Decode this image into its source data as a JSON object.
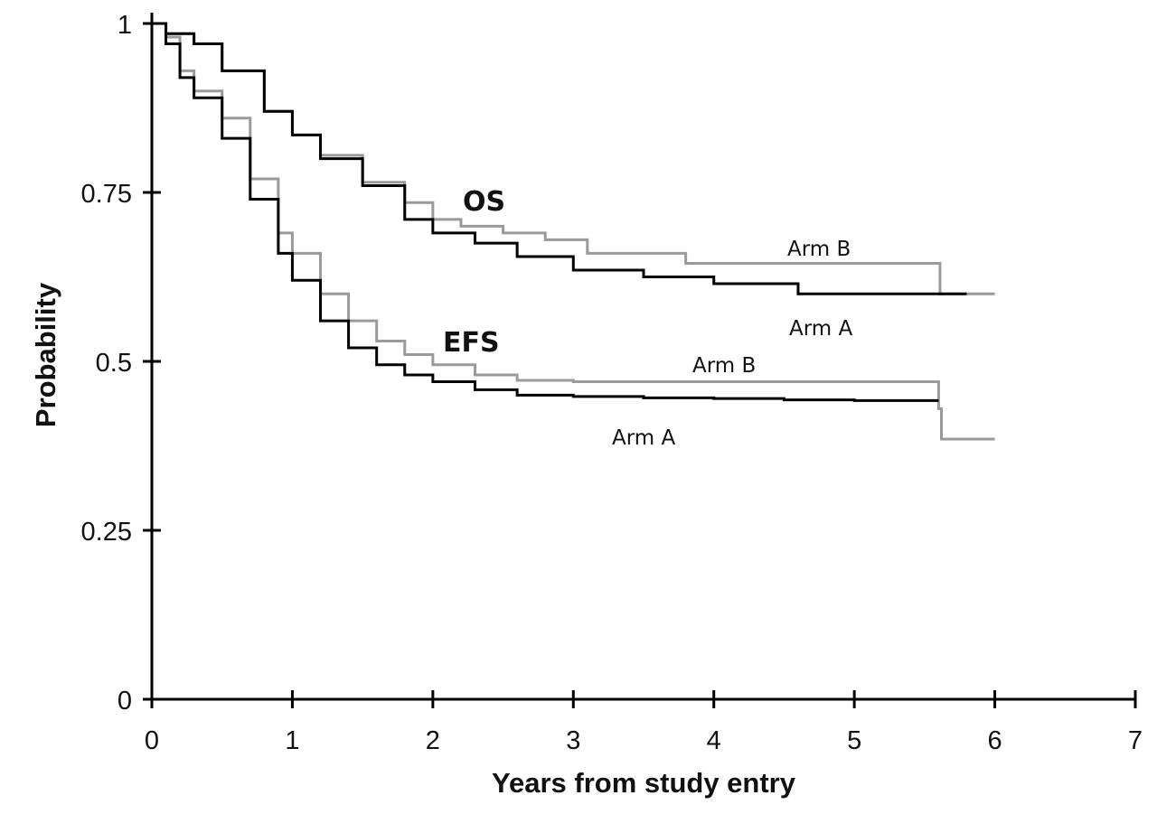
{
  "chart_data": {
    "type": "line",
    "xlabel": "Years from study entry",
    "ylabel": "Probability",
    "xlim": [
      0,
      7
    ],
    "ylim": [
      0,
      1
    ],
    "x_ticks": [
      "0",
      "1",
      "2",
      "3",
      "4",
      "5",
      "6",
      "7"
    ],
    "y_ticks": [
      "0",
      "0.25",
      "0.5",
      "0.75",
      "1"
    ],
    "grid": false,
    "legend": "none",
    "colors": {
      "arm_a": "#000000",
      "arm_b": "#9a9a9a",
      "axis": "#000000"
    },
    "annotations": {
      "os": "OS",
      "efs": "EFS",
      "os_arm_b": "Arm B",
      "os_arm_a": "Arm A",
      "efs_arm_b": "Arm B",
      "efs_arm_a": "Arm A"
    },
    "series": [
      {
        "endpoint": "OS",
        "arm": "Arm A",
        "color": "#000000",
        "x": [
          0,
          0.1,
          0.3,
          0.5,
          0.8,
          1.0,
          1.2,
          1.5,
          1.8,
          2.0,
          2.3,
          2.6,
          3.0,
          3.5,
          4.0,
          4.6,
          5.0,
          5.5,
          5.8
        ],
        "y": [
          1.0,
          0.985,
          0.97,
          0.93,
          0.87,
          0.835,
          0.8,
          0.76,
          0.71,
          0.69,
          0.675,
          0.655,
          0.635,
          0.625,
          0.615,
          0.6,
          0.6,
          0.6,
          0.6
        ]
      },
      {
        "endpoint": "OS",
        "arm": "Arm B",
        "color": "#9a9a9a",
        "x": [
          0,
          0.1,
          0.3,
          0.5,
          0.8,
          1.0,
          1.2,
          1.5,
          1.8,
          2.0,
          2.2,
          2.5,
          2.8,
          3.1,
          3.5,
          3.8,
          4.5,
          5.0,
          5.6,
          5.61,
          6.0
        ],
        "y": [
          1.0,
          0.985,
          0.97,
          0.93,
          0.87,
          0.835,
          0.805,
          0.765,
          0.735,
          0.71,
          0.7,
          0.69,
          0.68,
          0.66,
          0.66,
          0.645,
          0.645,
          0.645,
          0.645,
          0.6,
          0.6
        ]
      },
      {
        "endpoint": "EFS",
        "arm": "Arm A",
        "color": "#000000",
        "x": [
          0,
          0.1,
          0.2,
          0.3,
          0.5,
          0.7,
          0.9,
          1.0,
          1.2,
          1.4,
          1.6,
          1.8,
          2.0,
          2.3,
          2.6,
          3.0,
          3.5,
          4.0,
          4.5,
          5.0,
          5.6
        ],
        "y": [
          1.0,
          0.97,
          0.92,
          0.89,
          0.83,
          0.74,
          0.66,
          0.62,
          0.56,
          0.52,
          0.495,
          0.48,
          0.47,
          0.458,
          0.45,
          0.448,
          0.446,
          0.445,
          0.443,
          0.442,
          0.442
        ]
      },
      {
        "endpoint": "EFS",
        "arm": "Arm B",
        "color": "#9a9a9a",
        "x": [
          0,
          0.1,
          0.2,
          0.3,
          0.5,
          0.7,
          0.9,
          1.0,
          1.2,
          1.4,
          1.6,
          1.8,
          2.0,
          2.3,
          2.6,
          3.0,
          4.0,
          5.0,
          5.58,
          5.6,
          5.62,
          6.0
        ],
        "y": [
          1.0,
          0.98,
          0.93,
          0.9,
          0.86,
          0.77,
          0.69,
          0.66,
          0.6,
          0.56,
          0.53,
          0.51,
          0.495,
          0.48,
          0.472,
          0.47,
          0.47,
          0.47,
          0.47,
          0.43,
          0.385,
          0.385
        ]
      }
    ]
  }
}
